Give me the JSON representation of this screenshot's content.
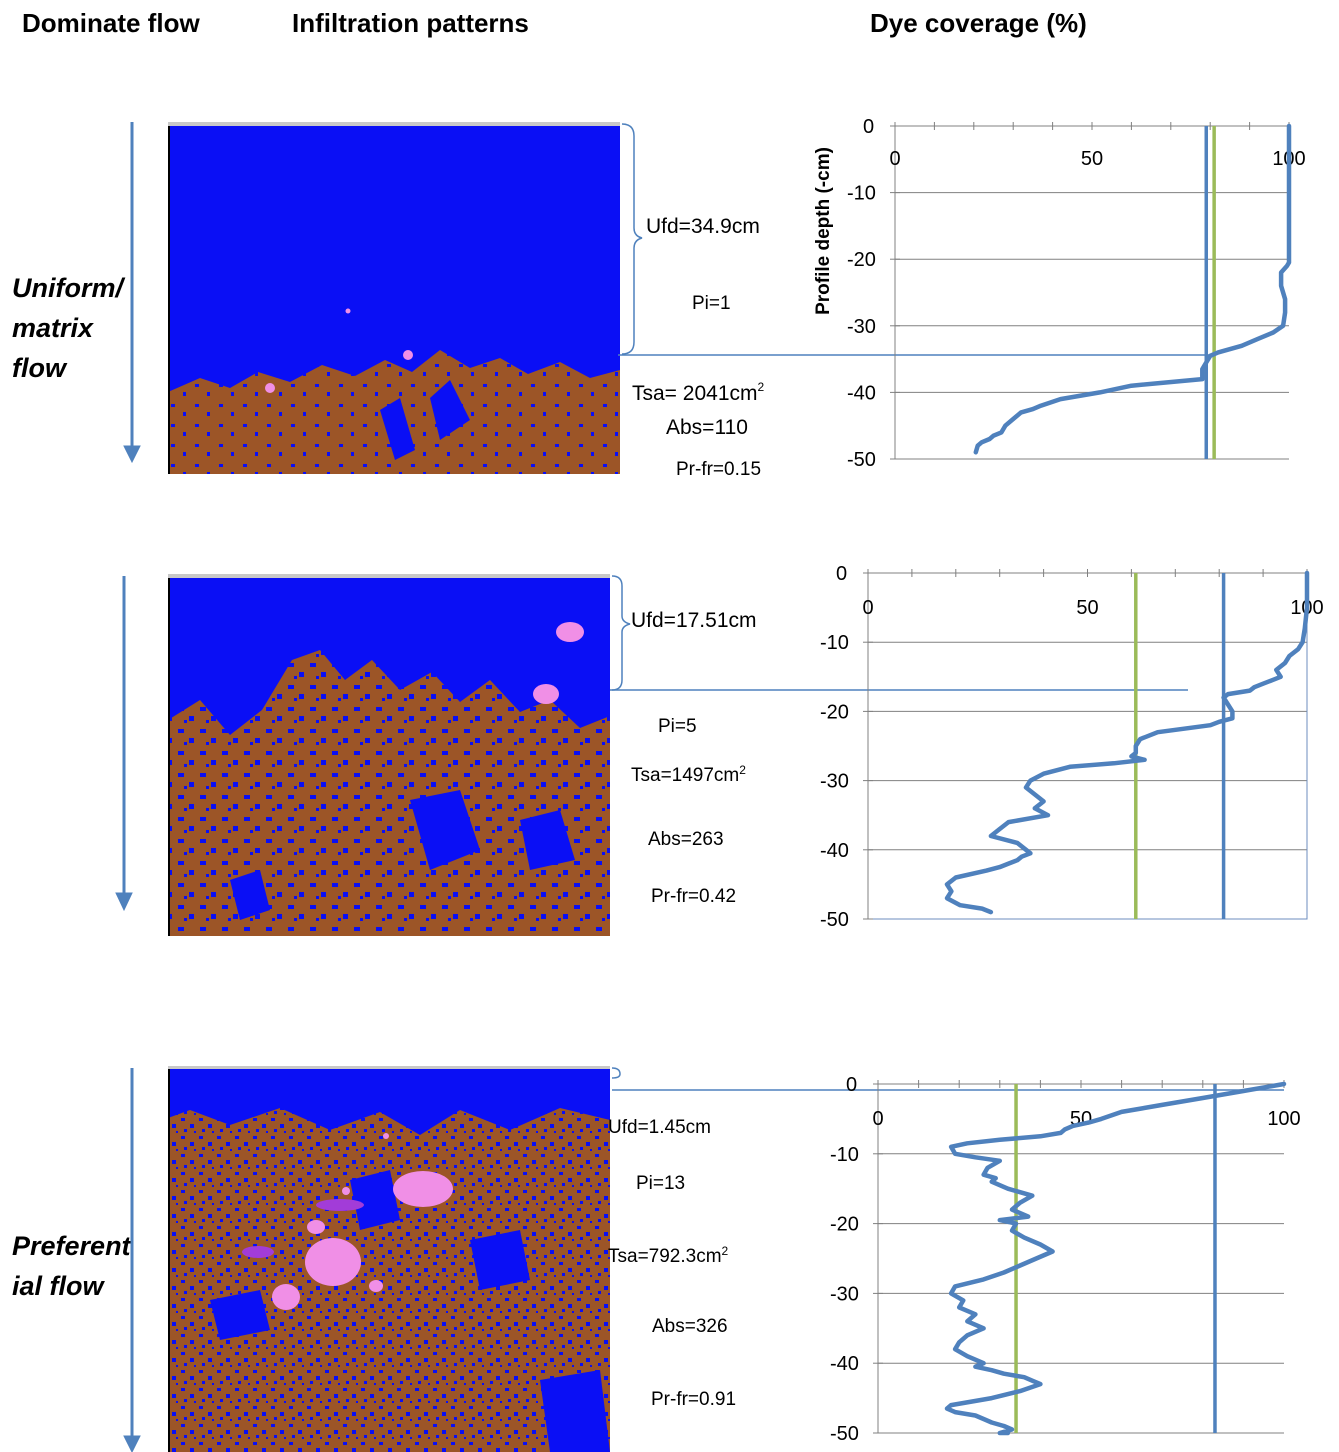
{
  "headers": {
    "dominate_flow": "Dominate flow",
    "infiltration_patterns": "Infiltration patterns",
    "dye_coverage": "Dye coverage (%)"
  },
  "flow_types": {
    "uniform": "Uniform/ matrix flow",
    "preferential": "Preferent ial flow"
  },
  "panels": [
    {
      "ufd": "Ufd=34.9cm",
      "pi": "Pi=1",
      "tsa": "Tsa= 2041cm",
      "tsa_sup": "2",
      "abs": "Abs=110",
      "prfr": "Pr-fr=0.15"
    },
    {
      "ufd": "Ufd=17.51cm",
      "pi": "Pi=5",
      "tsa": "Tsa=1497cm",
      "tsa_sup": "2",
      "abs": "Abs=263",
      "prfr": "Pr-fr=0.42"
    },
    {
      "ufd": "Ufd=1.45cm",
      "pi": "Pi=13",
      "tsa": "Tsa=792.3cm",
      "tsa_sup": "2",
      "abs": "Abs=326",
      "prfr": "Pr-fr=0.91"
    }
  ],
  "colors": {
    "dye_blue": "#0a0ff5",
    "soil_brown": "#9c5527",
    "stone_pink": "#f08fe6",
    "stone_purple": "#a23cd8",
    "series_line": "#4f81bd",
    "green_line": "#9bbb59",
    "grid": "#808080"
  },
  "chart_data": [
    {
      "type": "line",
      "ylabel": "Profile depth (-cm)",
      "xlim": [
        0,
        100
      ],
      "ylim": [
        -50,
        0
      ],
      "xticks": [
        "0",
        "50",
        "100"
      ],
      "yticks": [
        "0",
        "-10",
        "-20",
        "-30",
        "-40",
        "-50"
      ],
      "series": [
        {
          "x": [
            100,
            100,
            100,
            100,
            100,
            100,
            100,
            99.5,
            98,
            98,
            99,
            99,
            98.5,
            96,
            92,
            88,
            82,
            80,
            79,
            78,
            78,
            60,
            52,
            42,
            37,
            35,
            32,
            30,
            28,
            27,
            25,
            24,
            22,
            21,
            20.5
          ],
          "y": [
            0,
            -5,
            -10,
            -15,
            -18,
            -20,
            -20.5,
            -21,
            -22,
            -24,
            -26,
            -28,
            -30,
            -31,
            -32,
            -33,
            -34,
            -34.5,
            -35.5,
            -36.5,
            -38,
            -39,
            -40,
            -41,
            -42,
            -42.5,
            -43,
            -44,
            -45,
            -46,
            -46.5,
            -47,
            -47.5,
            -48,
            -49
          ]
        }
      ],
      "vlines": [
        {
          "color": "blue",
          "x": 79
        },
        {
          "color": "green",
          "x": 81
        }
      ]
    },
    {
      "type": "line",
      "ylim": [
        -50,
        0
      ],
      "xlim": [
        0,
        100
      ],
      "xticks": [
        "0",
        "50",
        "100"
      ],
      "yticks": [
        "0",
        "-10",
        "-20",
        "-30",
        "-40",
        "-50"
      ],
      "series": [
        {
          "x": [
            100,
            100,
            99.5,
            99,
            98,
            96,
            95,
            93,
            94,
            92,
            90,
            88,
            87,
            82,
            81,
            82,
            83,
            83,
            80,
            78,
            72,
            66,
            62,
            61,
            61,
            60,
            63,
            56,
            46,
            40,
            37,
            36,
            40,
            38,
            41,
            32,
            30,
            28,
            34,
            36,
            37,
            35,
            34,
            32,
            30,
            27,
            20,
            18,
            19,
            18,
            21,
            26,
            28
          ],
          "y": [
            0,
            -5,
            -8,
            -10,
            -11,
            -12,
            -13,
            -14,
            -15,
            -15.5,
            -16,
            -16.5,
            -17,
            -17.5,
            -18,
            -19,
            -20,
            -21,
            -21.5,
            -22,
            -22.5,
            -23,
            -24,
            -25,
            -26,
            -26.5,
            -27,
            -27.5,
            -28,
            -29,
            -30,
            -31,
            -33,
            -34,
            -35,
            -36,
            -37,
            -38,
            -39,
            -40,
            -40.5,
            -41,
            -41.5,
            -42,
            -42.5,
            -43,
            -44,
            -45,
            -46,
            -47,
            -48,
            -48.5,
            -49
          ]
        }
      ],
      "vlines": [
        {
          "color": "green",
          "x": 61
        },
        {
          "color": "blue",
          "x": 81
        }
      ]
    },
    {
      "type": "line",
      "ylim": [
        -50,
        0
      ],
      "xlim": [
        0,
        100
      ],
      "xticks": [
        "0",
        "50",
        "100"
      ],
      "yticks": [
        "0",
        "-10",
        "-20",
        "-30",
        "-40",
        "-50"
      ],
      "series": [
        {
          "x": [
            100,
            90,
            80,
            70,
            60,
            55,
            52,
            48,
            46,
            45,
            40,
            30,
            22,
            18,
            19,
            24,
            30,
            27,
            26,
            29,
            28,
            32,
            35,
            38,
            35,
            33,
            37,
            30,
            34,
            33,
            36,
            40,
            43,
            39,
            37,
            35,
            31,
            26,
            19,
            18,
            21,
            20,
            24,
            22,
            26,
            22,
            20,
            19,
            22,
            26,
            24,
            28,
            31,
            36,
            38,
            40,
            35,
            28,
            18,
            17,
            19,
            24,
            26,
            28,
            31,
            33,
            30,
            32
          ],
          "y": [
            0,
            -1,
            -2,
            -3,
            -4,
            -5,
            -5.5,
            -6,
            -6.5,
            -7,
            -7.5,
            -8,
            -8.5,
            -9,
            -10,
            -10.5,
            -11,
            -12,
            -13,
            -13.5,
            -14,
            -15,
            -15.5,
            -16,
            -17,
            -18,
            -19,
            -19.5,
            -20,
            -21,
            -22,
            -23,
            -24,
            -25,
            -25.5,
            -26,
            -27,
            -28,
            -29,
            -30,
            -31,
            -32,
            -33,
            -34,
            -35,
            -36,
            -37,
            -38,
            -39,
            -40,
            -40.5,
            -41,
            -41.5,
            -42,
            -42.5,
            -43,
            -44,
            -45,
            -46,
            -46.5,
            -47,
            -47.5,
            -48,
            -48.5,
            -49,
            -49.5,
            -50,
            -50
          ]
        }
      ],
      "vlines": [
        {
          "color": "green",
          "x": 34
        },
        {
          "color": "blue",
          "x": 83
        }
      ]
    }
  ]
}
